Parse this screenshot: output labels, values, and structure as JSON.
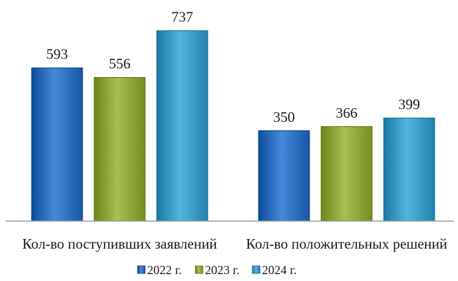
{
  "chart_data": {
    "type": "bar",
    "categories": [
      "Кол-во поступивших заявлений",
      "Кол-во положительных решений"
    ],
    "series": [
      {
        "name": "2022 г.",
        "values": [
          593,
          350
        ],
        "color": "#2f6fc0"
      },
      {
        "name": "2023 г.",
        "values": [
          556,
          366
        ],
        "color": "#8fa63a"
      },
      {
        "name": "2024 г.",
        "values": [
          737,
          399
        ],
        "color": "#3a9cc6"
      }
    ],
    "title": "",
    "xlabel": "",
    "ylabel": "",
    "ylim": [
      0,
      800
    ],
    "grid": false,
    "legend_position": "bottom"
  }
}
